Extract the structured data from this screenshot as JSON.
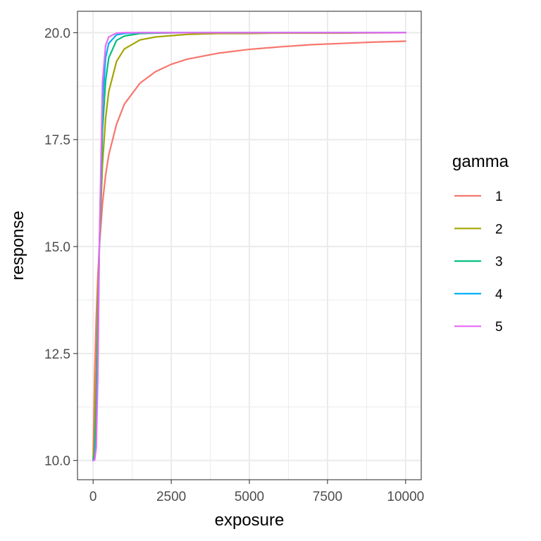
{
  "chart_data": {
    "type": "line",
    "title": "",
    "xlabel": "exposure",
    "ylabel": "response",
    "xlim": [
      0,
      10000
    ],
    "ylim": [
      10,
      20
    ],
    "x_ticks": [
      0,
      2500,
      5000,
      7500,
      10000
    ],
    "x_tick_labels": [
      "0",
      "2500",
      "5000",
      "7500",
      "10000"
    ],
    "y_ticks": [
      10,
      12.5,
      15,
      17.5,
      20
    ],
    "y_tick_labels": [
      "10.0",
      "12.5",
      "15.0",
      "17.5",
      "20.0"
    ],
    "grid": true,
    "legend": {
      "title": "gamma",
      "position": "right"
    },
    "series": [
      {
        "name": "1",
        "color": "#F8766D",
        "x": [
          0,
          50,
          100,
          150,
          200,
          300,
          400,
          500,
          750,
          1000,
          1500,
          2000,
          2500,
          3000,
          4000,
          5000,
          6000,
          7000,
          8000,
          9000,
          10000
        ],
        "y": [
          10.0,
          12.0,
          13.33,
          14.29,
          15.0,
          16.0,
          16.67,
          17.14,
          17.86,
          18.33,
          18.82,
          19.09,
          19.26,
          19.38,
          19.52,
          19.61,
          19.67,
          19.72,
          19.75,
          19.78,
          19.8
        ]
      },
      {
        "name": "2",
        "color": "#A3A500",
        "x": [
          0,
          50,
          100,
          150,
          200,
          300,
          400,
          500,
          750,
          1000,
          1500,
          2000,
          3000,
          4000,
          5000,
          6000,
          8000,
          10000
        ],
        "y": [
          10.0,
          10.59,
          12.0,
          13.6,
          15.0,
          16.92,
          18.0,
          18.62,
          19.33,
          19.62,
          19.83,
          19.9,
          19.96,
          19.98,
          19.98,
          19.99,
          19.99,
          20.0
        ]
      },
      {
        "name": "3",
        "color": "#00BF7D",
        "x": [
          0,
          50,
          100,
          150,
          200,
          300,
          400,
          500,
          750,
          1000,
          1500,
          2000,
          3000,
          5000,
          10000
        ],
        "y": [
          10.0,
          10.15,
          11.11,
          12.97,
          15.0,
          17.71,
          18.88,
          19.41,
          19.82,
          19.92,
          19.98,
          19.99,
          20.0,
          20.0,
          20.0
        ]
      },
      {
        "name": "4",
        "color": "#00B0F6",
        "x": [
          0,
          50,
          100,
          150,
          200,
          300,
          400,
          500,
          750,
          1000,
          1500,
          2000,
          5000,
          10000
        ],
        "y": [
          10.0,
          10.04,
          10.59,
          12.4,
          15.0,
          18.35,
          19.41,
          19.75,
          19.95,
          19.98,
          20.0,
          20.0,
          20.0,
          20.0
        ]
      },
      {
        "name": "5",
        "color": "#E76BF3",
        "x": [
          0,
          50,
          100,
          150,
          200,
          300,
          400,
          500,
          750,
          1000,
          1500,
          2000,
          5000,
          10000
        ],
        "y": [
          10.0,
          10.01,
          10.3,
          11.92,
          15.0,
          18.84,
          19.7,
          19.9,
          19.99,
          20.0,
          20.0,
          20.0,
          20.0,
          20.0
        ]
      }
    ]
  }
}
